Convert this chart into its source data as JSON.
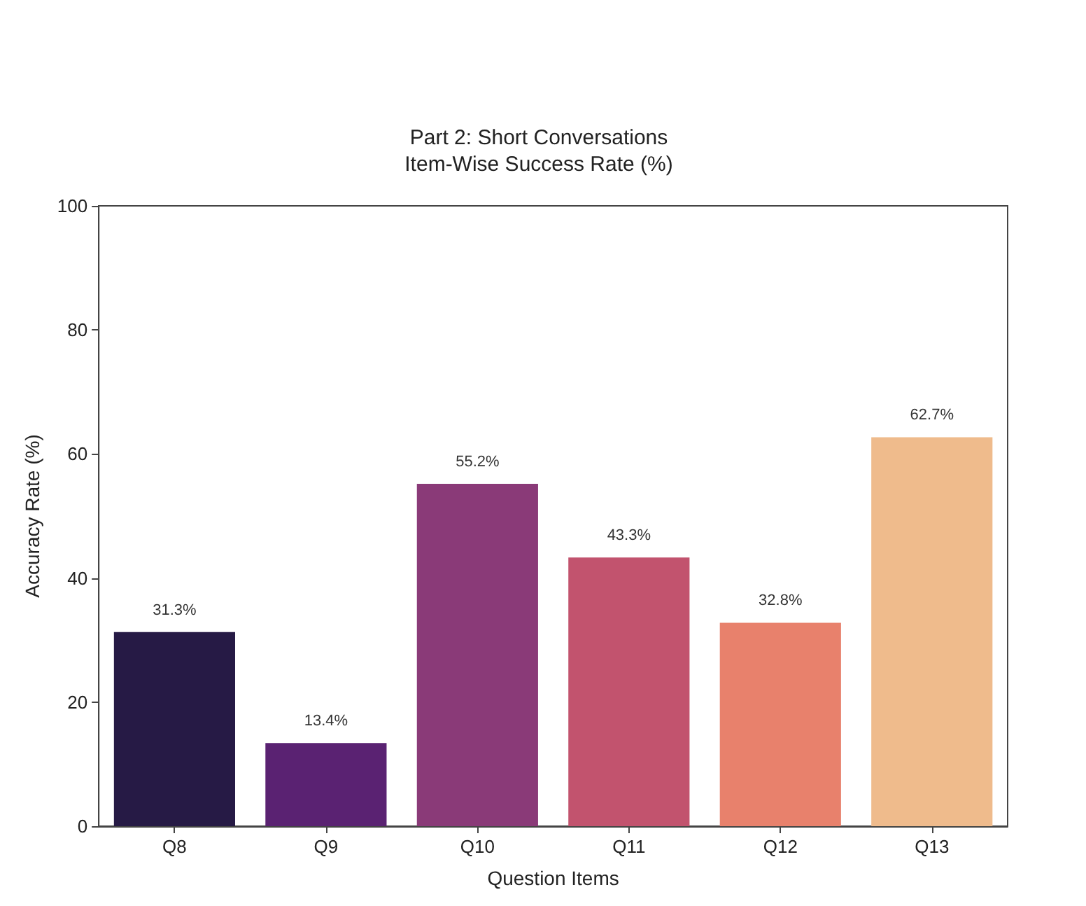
{
  "chart_data": {
    "type": "bar",
    "title": "Part 2: Short Conversations",
    "subtitle": "Item-Wise Success Rate (%)",
    "xlabel": "Question Items",
    "ylabel": "Accuracy Rate (%)",
    "categories": [
      "Q8",
      "Q9",
      "Q10",
      "Q11",
      "Q12",
      "Q13"
    ],
    "values": [
      31.3,
      13.4,
      55.2,
      43.3,
      32.8,
      62.7
    ],
    "colors": [
      "#261a45",
      "#5a2272",
      "#8a3a78",
      "#c2536e",
      "#e8816c",
      "#efbb8c"
    ],
    "value_labels": [
      "31.3%",
      "13.4%",
      "55.2%",
      "43.3%",
      "32.8%",
      "62.7%"
    ],
    "ylim": [
      0,
      100
    ],
    "yticks": [
      0,
      20,
      40,
      60,
      80,
      100
    ]
  }
}
